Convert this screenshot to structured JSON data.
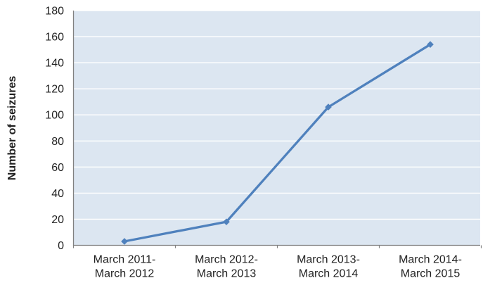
{
  "chart_data": {
    "type": "line",
    "title": "",
    "xlabel": "",
    "ylabel": "Number of seizures",
    "categories": [
      "March 2011-March 2012",
      "March 2012-March 2013",
      "March 2013-March 2014",
      "March 2014-March 2015"
    ],
    "category_labels_2line": [
      [
        "March 2011-",
        "March 2012"
      ],
      [
        "March 2012-",
        "March 2013"
      ],
      [
        "March 2013-",
        "March 2014"
      ],
      [
        "March 2014-",
        "March 2015"
      ]
    ],
    "series": [
      {
        "name": "Number of seizures",
        "values": [
          3,
          18,
          106,
          154
        ]
      }
    ],
    "ylim": [
      0,
      180
    ],
    "yticks": [
      0,
      20,
      40,
      60,
      80,
      100,
      120,
      140,
      160,
      180
    ],
    "grid": "horizontal",
    "legend": "none",
    "marker_shape": "diamond",
    "colors": {
      "line": "#4F81BD",
      "marker": "#4F81BD",
      "plot_background": "#DCE6F1",
      "gridline": "#FFFFFF",
      "axis_line": "#808080",
      "text": "#1F1F1F",
      "chart_background": "#FFFFFF"
    }
  }
}
